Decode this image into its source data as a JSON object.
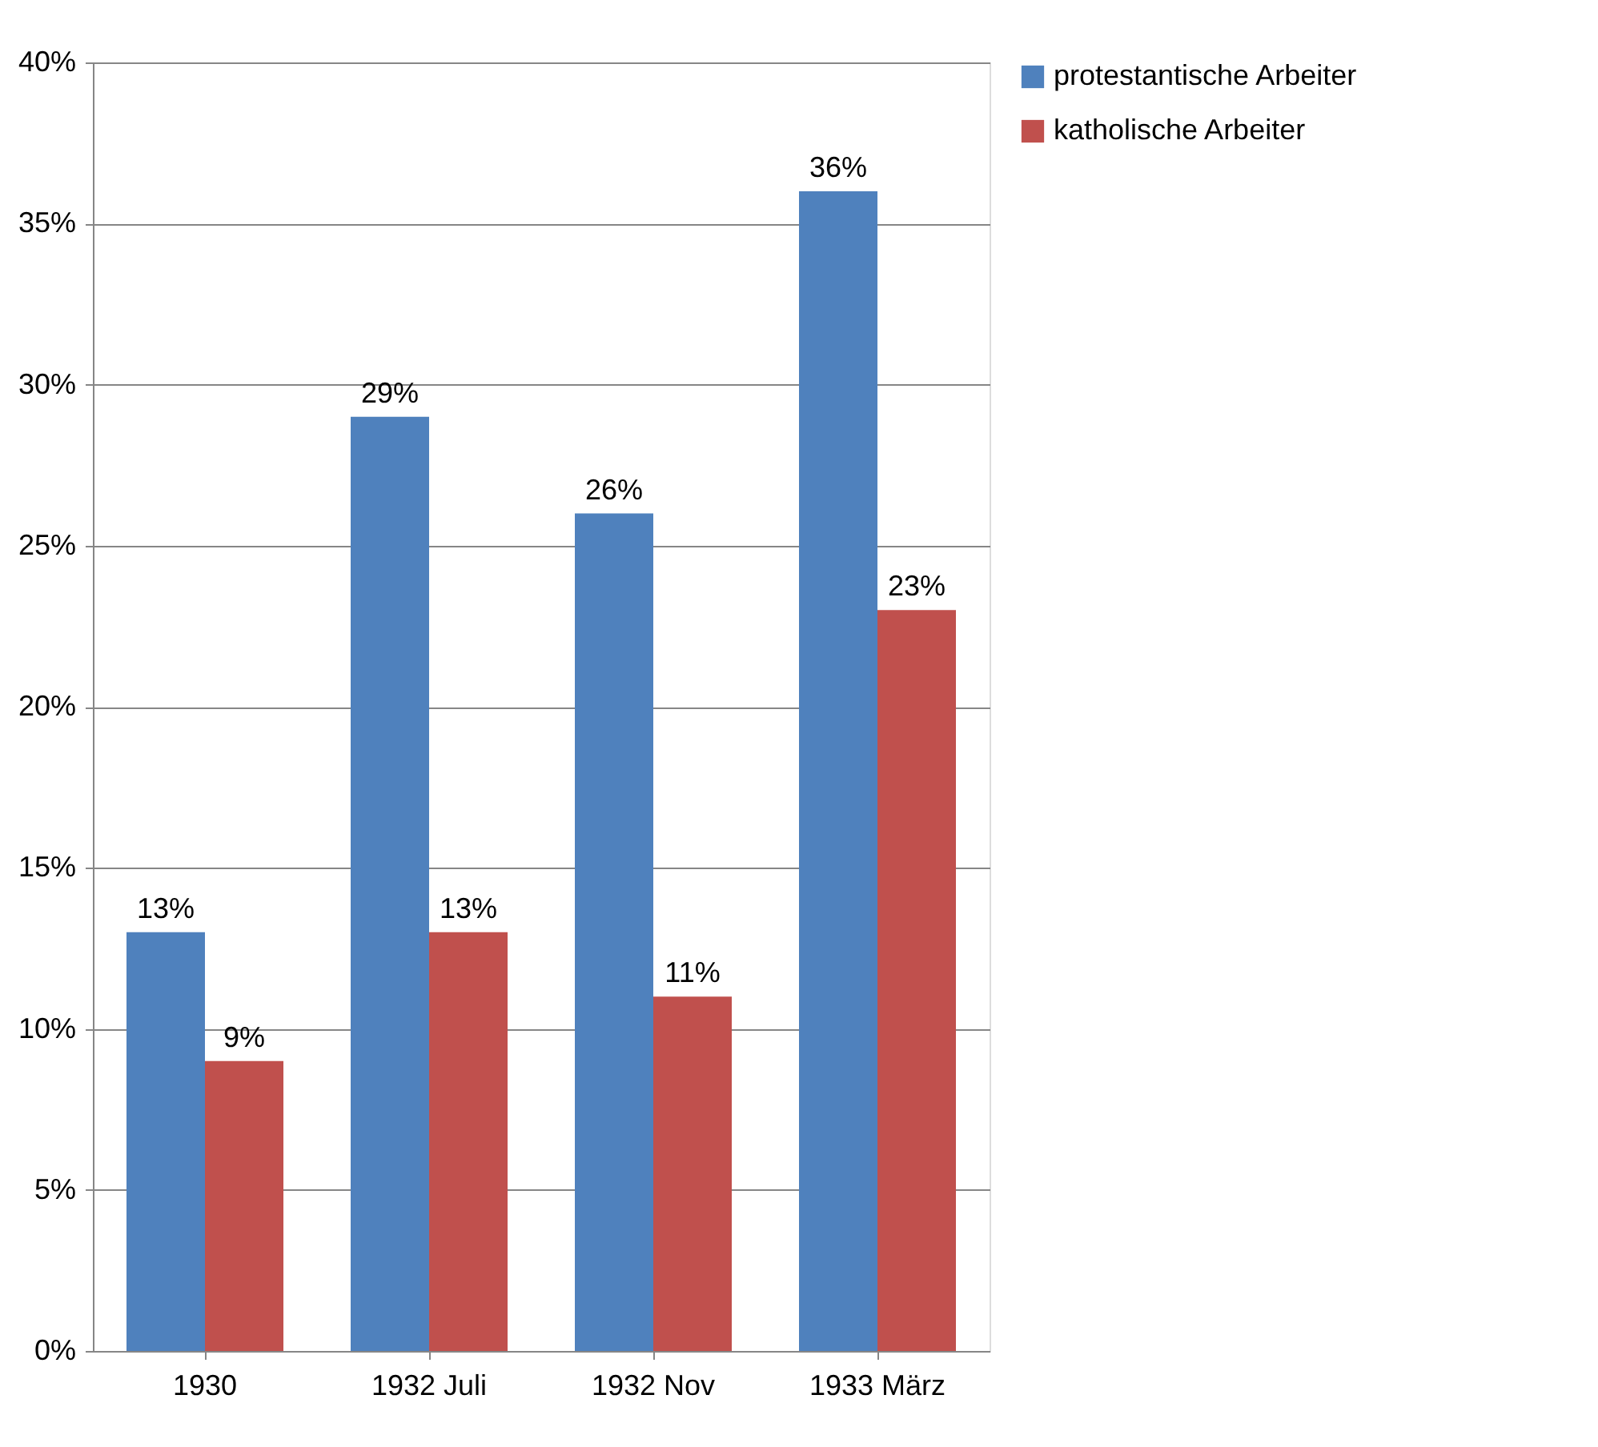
{
  "chart_data": {
    "type": "bar",
    "categories": [
      "1930",
      "1932 Juli",
      "1932 Nov",
      "1933 März"
    ],
    "series": [
      {
        "name": "protestantische Arbeiter",
        "color": "#4f81bd",
        "values": [
          13,
          29,
          26,
          36
        ],
        "value_labels": [
          "13%",
          "29%",
          "26%",
          "36%"
        ]
      },
      {
        "name": "katholische Arbeiter",
        "color": "#c0504d",
        "values": [
          9,
          13,
          11,
          23
        ],
        "value_labels": [
          "9%",
          "13%",
          "11%",
          "23%"
        ]
      }
    ],
    "ylim": [
      0,
      40
    ],
    "yticks": [
      {
        "value": 0,
        "label": "0%"
      },
      {
        "value": 5,
        "label": "5%"
      },
      {
        "value": 10,
        "label": "10%"
      },
      {
        "value": 15,
        "label": "15%"
      },
      {
        "value": 20,
        "label": "20%"
      },
      {
        "value": 25,
        "label": "25%"
      },
      {
        "value": 30,
        "label": "30%"
      },
      {
        "value": 35,
        "label": "35%"
      },
      {
        "value": 40,
        "label": "40%"
      }
    ],
    "grid": "y",
    "legend": "right"
  }
}
